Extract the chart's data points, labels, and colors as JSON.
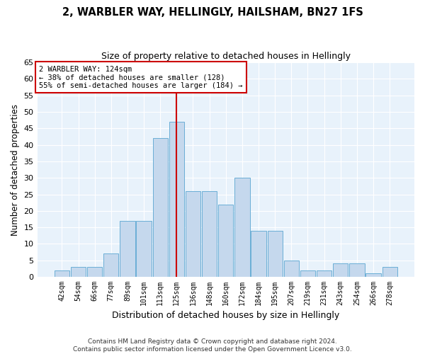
{
  "title": "2, WARBLER WAY, HELLINGLY, HAILSHAM, BN27 1FS",
  "subtitle": "Size of property relative to detached houses in Hellingly",
  "xlabel": "Distribution of detached houses by size in Hellingly",
  "ylabel": "Number of detached properties",
  "bar_color": "#c5d8ed",
  "bar_edge_color": "#6aaed6",
  "bg_color": "#e8f2fb",
  "grid_color": "#ffffff",
  "categories": [
    "42sqm",
    "54sqm",
    "66sqm",
    "77sqm",
    "89sqm",
    "101sqm",
    "113sqm",
    "125sqm",
    "136sqm",
    "148sqm",
    "160sqm",
    "172sqm",
    "184sqm",
    "195sqm",
    "207sqm",
    "219sqm",
    "231sqm",
    "243sqm",
    "254sqm",
    "266sqm",
    "278sqm"
  ],
  "values": [
    2,
    3,
    3,
    7,
    17,
    17,
    42,
    47,
    26,
    26,
    22,
    30,
    14,
    14,
    5,
    2,
    2,
    4,
    4,
    1,
    3
  ],
  "marker_bin_index": 7,
  "ylim": [
    0,
    65
  ],
  "yticks": [
    0,
    5,
    10,
    15,
    20,
    25,
    30,
    35,
    40,
    45,
    50,
    55,
    60,
    65
  ],
  "annotation_title": "2 WARBLER WAY: 124sqm",
  "annotation_line1": "← 38% of detached houses are smaller (128)",
  "annotation_line2": "55% of semi-detached houses are larger (184) →",
  "footer1": "Contains HM Land Registry data © Crown copyright and database right 2024.",
  "footer2": "Contains public sector information licensed under the Open Government Licence v3.0."
}
